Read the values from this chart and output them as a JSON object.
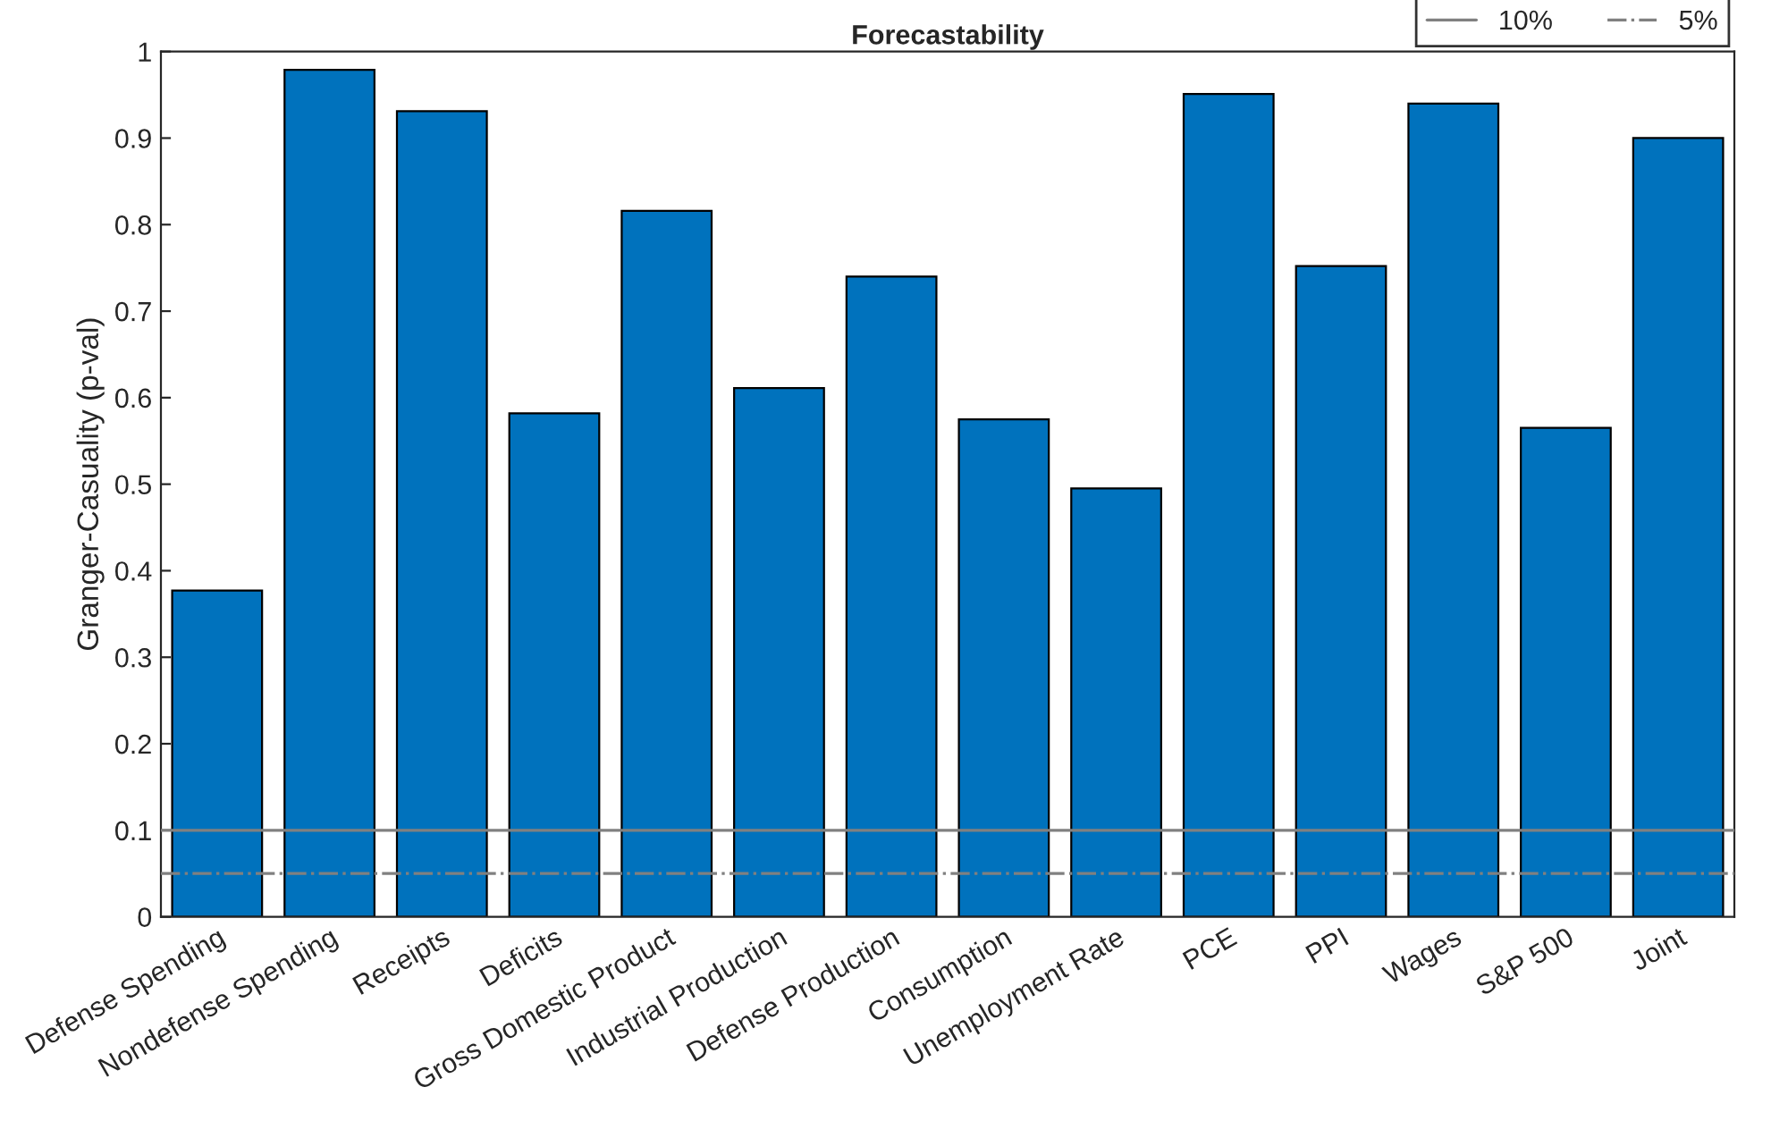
{
  "chart_data": {
    "type": "bar",
    "title": "Forecastability",
    "ylabel": "Granger-Casuality (p-val)",
    "categories": [
      "Defense Spending",
      "Nondefense Spending",
      "Receipts",
      "Deficits",
      "Gross Domestic Product",
      "Industrial Production",
      "Defense Production",
      "Consumption",
      "Unemployment Rate",
      "PCE",
      "PPI",
      "Wages",
      "S&P 500",
      "Joint"
    ],
    "values": [
      0.377,
      0.979,
      0.931,
      0.582,
      0.816,
      0.611,
      0.74,
      0.575,
      0.495,
      0.951,
      0.752,
      0.94,
      0.565,
      0.9
    ],
    "color": "#0072bd",
    "ylim": [
      0,
      1
    ],
    "yticks": [
      0,
      0.1,
      0.2,
      0.3,
      0.4,
      0.5,
      0.6,
      0.7,
      0.8,
      0.9,
      1
    ],
    "ref_lines": [
      {
        "axis": "y",
        "value": 0.1,
        "label": "10%",
        "color": "#808080",
        "line_style": "solid"
      },
      {
        "axis": "y",
        "value": 0.05,
        "label": "5%",
        "color": "#808080",
        "line_style": "dashdot"
      }
    ],
    "legend": "top right",
    "grid": false
  }
}
